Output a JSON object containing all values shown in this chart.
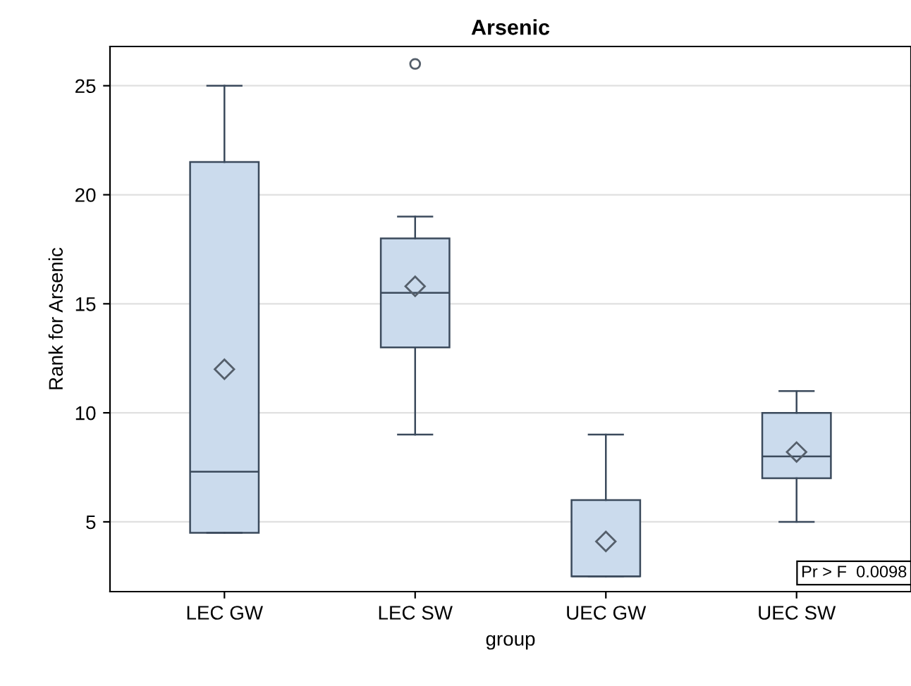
{
  "chart_data": {
    "type": "box",
    "title": "Arsenic",
    "xlabel": "group",
    "ylabel": "Rank for Arsenic",
    "categories": [
      "LEC GW",
      "LEC SW",
      "UEC GW",
      "UEC SW"
    ],
    "boxes": [
      {
        "low": 4.5,
        "q1": 4.5,
        "median": 7.3,
        "q3": 21.5,
        "high": 25,
        "mean": 12
      },
      {
        "low": 9,
        "q1": 13,
        "median": 15.5,
        "q3": 18,
        "high": 19,
        "mean": 15.8,
        "outliers": [
          26
        ]
      },
      {
        "low": 2.5,
        "q1": 2.5,
        "median": 2.5,
        "q3": 6,
        "high": 9,
        "mean": 4.1
      },
      {
        "low": 5,
        "q1": 7,
        "median": 8,
        "q3": 10,
        "high": 11,
        "mean": 8.2
      }
    ],
    "color": "#cbdbed",
    "ylim": [
      1.8,
      26.8
    ],
    "yticks": [
      5,
      10,
      15,
      20,
      25
    ],
    "grid": "y",
    "annotations": [
      "Pr > F  0.0098"
    ]
  }
}
